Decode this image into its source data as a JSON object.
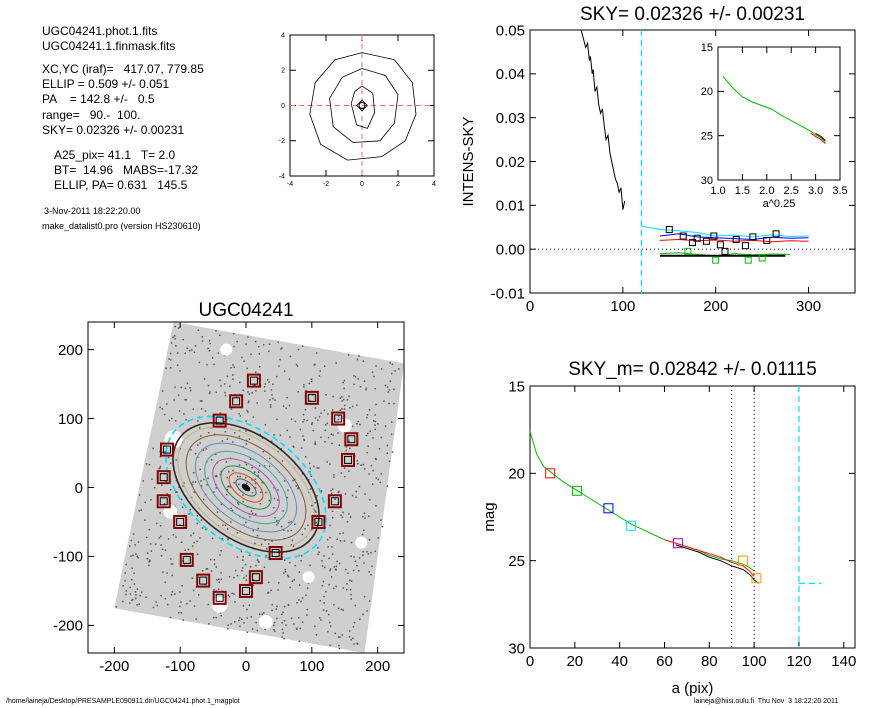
{
  "header": {
    "file_lines": [
      "UGC04241.phot.1.fits",
      "UGC04241.1.finmask.fits"
    ],
    "params": [
      "XC,YC (iraf)=   417.07, 779.85",
      "ELLIP = 0.509 +/- 0.051",
      "PA    = 142.8 +/-   0.5",
      "range=   90.-  100.",
      "SKY= 0.02326 +/- 0.00231"
    ],
    "results": [
      "A25_pix= 41.1   T= 2.0",
      "BT=  14.96   MABS=-17.32",
      "ELLIP, PA= 0.631   145.5"
    ],
    "timestamp": "3-Nov-2011 18:22:20.00",
    "program": "make_datalist0.pro (version HS230610)"
  },
  "footer": {
    "path": "/home/laineja/Desktop/PRESAMPLE090911.dir/UGC04241.phot.1_magplot",
    "user": "laineja@hiisi.oulu.fi  Thu Nov  3 18:22:20 2011"
  },
  "colors": {
    "black": "#000000",
    "cyan": "#00e0ff",
    "red": "#ff0000",
    "green": "#00bb00",
    "blue": "#0000ff",
    "purple": "#aa00aa",
    "orange": "#ff9900",
    "maroon": "#8b0000",
    "dashred": "#ff6666"
  },
  "chart_data": [
    {
      "type": "line",
      "name": "centering contours",
      "xlim": [
        -4,
        4
      ],
      "ylim": [
        -4,
        4
      ],
      "xticks": [
        -4,
        -2,
        0,
        2,
        4
      ],
      "yticks": [
        -4,
        -2,
        0,
        2,
        4
      ],
      "tick_labels_x": [
        "-4",
        "-2",
        "0",
        "2",
        "4"
      ],
      "tick_labels_y": [
        "-4",
        "-2",
        "0",
        "2",
        "4"
      ],
      "crosshair": [
        0,
        0
      ],
      "contours": [
        [
          [
            0,
            0.3
          ],
          [
            0.3,
            0
          ],
          [
            0,
            -0.3
          ],
          [
            -0.3,
            0
          ],
          [
            0,
            0.3
          ]
        ],
        [
          [
            0,
            1.1
          ],
          [
            0.6,
            0.7
          ],
          [
            0.7,
            -0.4
          ],
          [
            0.3,
            -1.3
          ],
          [
            -0.3,
            -1.1
          ],
          [
            -0.6,
            0.1
          ],
          [
            -0.4,
            0.8
          ],
          [
            0,
            1.1
          ]
        ],
        [
          [
            0,
            2.1
          ],
          [
            1.3,
            1.7
          ],
          [
            2.0,
            0.6
          ],
          [
            1.8,
            -1.0
          ],
          [
            1.0,
            -2.0
          ],
          [
            -0.5,
            -2.1
          ],
          [
            -1.6,
            -1.2
          ],
          [
            -1.8,
            0.4
          ],
          [
            -1.1,
            1.6
          ],
          [
            0,
            2.1
          ]
        ],
        [
          [
            0,
            3.0
          ],
          [
            1.8,
            2.6
          ],
          [
            2.8,
            1.3
          ],
          [
            3.0,
            -0.5
          ],
          [
            2.4,
            -2.0
          ],
          [
            1.1,
            -2.9
          ],
          [
            -0.8,
            -3.1
          ],
          [
            -2.3,
            -2.2
          ],
          [
            -2.9,
            -0.5
          ],
          [
            -2.6,
            1.3
          ],
          [
            -1.5,
            2.6
          ],
          [
            0,
            3.0
          ]
        ]
      ]
    },
    {
      "type": "line",
      "title": "SKY= 0.02326 +/- 0.00231",
      "xlabel": "",
      "ylabel": "INTENS-SKY",
      "xlim": [
        0,
        350
      ],
      "ylim": [
        -0.01,
        0.05
      ],
      "xticks": [
        0,
        100,
        200,
        300
      ],
      "yticks": [
        -0.01,
        0.0,
        0.01,
        0.02,
        0.03,
        0.04,
        0.05
      ],
      "tick_labels_x": [
        "0",
        "100",
        "200",
        "300"
      ],
      "tick_labels_y": [
        "-0.01",
        "0.00",
        "0.01",
        "0.02",
        "0.03",
        "0.04",
        "0.05"
      ],
      "vline_dashed": 120,
      "hline_dotted": 0.0,
      "series": [
        {
          "color": "black",
          "x": [
            55,
            60,
            62,
            64,
            65,
            67,
            68,
            70,
            72,
            74,
            76,
            78,
            80,
            82,
            84,
            86,
            88,
            90,
            92,
            94,
            96,
            98,
            100,
            102
          ],
          "y": [
            0.05,
            0.046,
            0.047,
            0.043,
            0.044,
            0.04,
            0.041,
            0.036,
            0.037,
            0.033,
            0.031,
            0.032,
            0.028,
            0.025,
            0.026,
            0.022,
            0.02,
            0.018,
            0.016,
            0.015,
            0.013,
            0.014,
            0.009,
            0.011
          ]
        },
        {
          "color": "cyan",
          "x": [
            120,
            140,
            160,
            180,
            200,
            220,
            240,
            260,
            280,
            300
          ],
          "y": [
            0.0052,
            0.0045,
            0.0042,
            0.0038,
            0.003,
            0.0032,
            0.0028,
            0.0033,
            0.0029,
            0.003
          ]
        },
        {
          "color": "blue",
          "x": [
            140,
            160,
            180,
            200,
            220,
            240,
            260,
            280,
            300
          ],
          "y": [
            0.003,
            0.0035,
            0.0028,
            0.0026,
            0.0024,
            0.0022,
            0.0027,
            0.0025,
            0.0026
          ]
        },
        {
          "color": "red",
          "x": [
            140,
            160,
            180,
            200,
            220,
            240,
            260,
            280,
            300
          ],
          "y": [
            0.002,
            0.0022,
            0.0019,
            0.0021,
            0.0018,
            0.002,
            0.0017,
            0.0019,
            0.0018
          ]
        },
        {
          "color": "green",
          "x": [
            140,
            160,
            180,
            200,
            220,
            240,
            260,
            280
          ],
          "y": [
            -0.001,
            -0.0008,
            -0.0012,
            -0.0015,
            -0.001,
            -0.0013,
            -0.0011,
            -0.0012
          ]
        },
        {
          "color": "black",
          "width": 2,
          "x": [
            140,
            275
          ],
          "y": [
            -0.0015,
            -0.0015
          ]
        }
      ],
      "markers_black": [
        [
          150,
          0.0045
        ],
        [
          165,
          0.003
        ],
        [
          175,
          0.0015
        ],
        [
          180,
          0.0025
        ],
        [
          190,
          0.0018
        ],
        [
          198,
          0.003
        ],
        [
          205,
          0.001
        ],
        [
          210,
          -0.0005
        ],
        [
          222,
          0.0022
        ],
        [
          232,
          0.0008
        ],
        [
          240,
          0.0028
        ],
        [
          255,
          0.002
        ],
        [
          265,
          0.0035
        ]
      ],
      "markers_green": [
        [
          170,
          -0.0005
        ],
        [
          200,
          -0.0025
        ],
        [
          235,
          -0.0025
        ],
        [
          250,
          -0.002
        ]
      ],
      "inset": {
        "xlabel": "a^0.25",
        "xlim": [
          1.0,
          3.5
        ],
        "ylim": [
          15,
          30
        ],
        "xticks": [
          1.0,
          1.5,
          2.0,
          2.5,
          3.0,
          3.5
        ],
        "yticks": [
          15,
          20,
          25,
          30
        ],
        "tick_labels_x": [
          "1.0",
          "1.5",
          "2.0",
          "2.5",
          "3.0",
          "3.5"
        ],
        "tick_labels_y": [
          "15",
          "20",
          "25",
          "30"
        ],
        "x": [
          1.1,
          1.3,
          1.5,
          1.7,
          1.9,
          2.1,
          2.3,
          2.5,
          2.7,
          2.9,
          3.0,
          3.1,
          3.2
        ],
        "y": [
          18.3,
          19.6,
          20.6,
          21.2,
          21.6,
          22.0,
          22.7,
          23.3,
          23.9,
          24.5,
          24.9,
          25.2,
          25.7
        ]
      }
    },
    {
      "type": "scatter",
      "title": "UGC04241",
      "xlim": [
        -240,
        240
      ],
      "ylim": [
        -240,
        240
      ],
      "xticks": [
        -200,
        -100,
        0,
        100,
        200
      ],
      "yticks": [
        -200,
        -100,
        0,
        100,
        200
      ],
      "tick_labels_x": [
        "-200",
        "-100",
        "0",
        "100",
        "200"
      ],
      "tick_labels_y": [
        "-200",
        "-100",
        "0",
        "100",
        "200"
      ],
      "ellipse_pa_deg": 142.8,
      "sky_boxes": [
        [
          12,
          155
        ],
        [
          -15,
          125
        ],
        [
          -40,
          97
        ],
        [
          -120,
          55
        ],
        [
          -125,
          15
        ],
        [
          -125,
          -20
        ],
        [
          -100,
          -50
        ],
        [
          -90,
          -105
        ],
        [
          -65,
          -135
        ],
        [
          -40,
          -160
        ],
        [
          0,
          -150
        ],
        [
          15,
          -130
        ],
        [
          45,
          -95
        ],
        [
          110,
          -50
        ],
        [
          135,
          -20
        ],
        [
          155,
          40
        ],
        [
          160,
          70
        ],
        [
          140,
          100
        ],
        [
          100,
          130
        ]
      ]
    },
    {
      "type": "line",
      "title": "SKY_m=  0.02842 +/- 0.01115",
      "xlabel": "a (pix)",
      "ylabel": "mag",
      "xlim": [
        0,
        145
      ],
      "ylim": [
        15,
        30
      ],
      "xticks": [
        0,
        20,
        40,
        60,
        80,
        100,
        120,
        140
      ],
      "yticks": [
        15,
        20,
        25,
        30
      ],
      "tick_labels_x": [
        "0",
        "20",
        "40",
        "60",
        "80",
        "100",
        "120",
        "140"
      ],
      "tick_labels_y": [
        "15",
        "20",
        "25",
        "30"
      ],
      "vlines_dotted": [
        90,
        100
      ],
      "vline_dashed": 120,
      "sky_segment": {
        "x": [
          120,
          130
        ],
        "y": [
          26.3,
          26.3
        ]
      },
      "series": [
        {
          "color": "green",
          "x": [
            0,
            3,
            6,
            10,
            15,
            20,
            25,
            30,
            35,
            40,
            45,
            50,
            55,
            60,
            65,
            70,
            75,
            80,
            85,
            90,
            95,
            98,
            100
          ],
          "y": [
            17.6,
            18.9,
            19.6,
            20.0,
            20.5,
            20.9,
            21.3,
            21.7,
            22.1,
            22.5,
            22.9,
            23.2,
            23.5,
            23.8,
            24.0,
            24.2,
            24.4,
            24.7,
            24.9,
            25.0,
            25.2,
            25.4,
            25.6
          ]
        },
        {
          "color": "red",
          "x": [
            60,
            65,
            70,
            75,
            80,
            85,
            90,
            95,
            98,
            100
          ],
          "y": [
            23.8,
            24.0,
            24.2,
            24.4,
            24.6,
            24.8,
            25.1,
            25.3,
            25.6,
            25.9
          ]
        },
        {
          "color": "black",
          "x": [
            65,
            70,
            75,
            80,
            85,
            90,
            95,
            98,
            100,
            102
          ],
          "y": [
            24.1,
            24.3,
            24.5,
            24.8,
            25.0,
            25.3,
            25.5,
            25.8,
            26.1,
            26.3
          ]
        }
      ],
      "markers": [
        {
          "x": 9,
          "y": 20.0,
          "color": "red"
        },
        {
          "x": 21,
          "y": 21.0,
          "color": "green"
        },
        {
          "x": 35,
          "y": 22.0,
          "color": "blue"
        },
        {
          "x": 45,
          "y": 23.0,
          "color": "cyan"
        },
        {
          "x": 66,
          "y": 24.0,
          "color": "purple"
        },
        {
          "x": 95,
          "y": 25.0,
          "color": "orange"
        },
        {
          "x": 101,
          "y": 26.0,
          "color": "orange"
        }
      ]
    }
  ]
}
